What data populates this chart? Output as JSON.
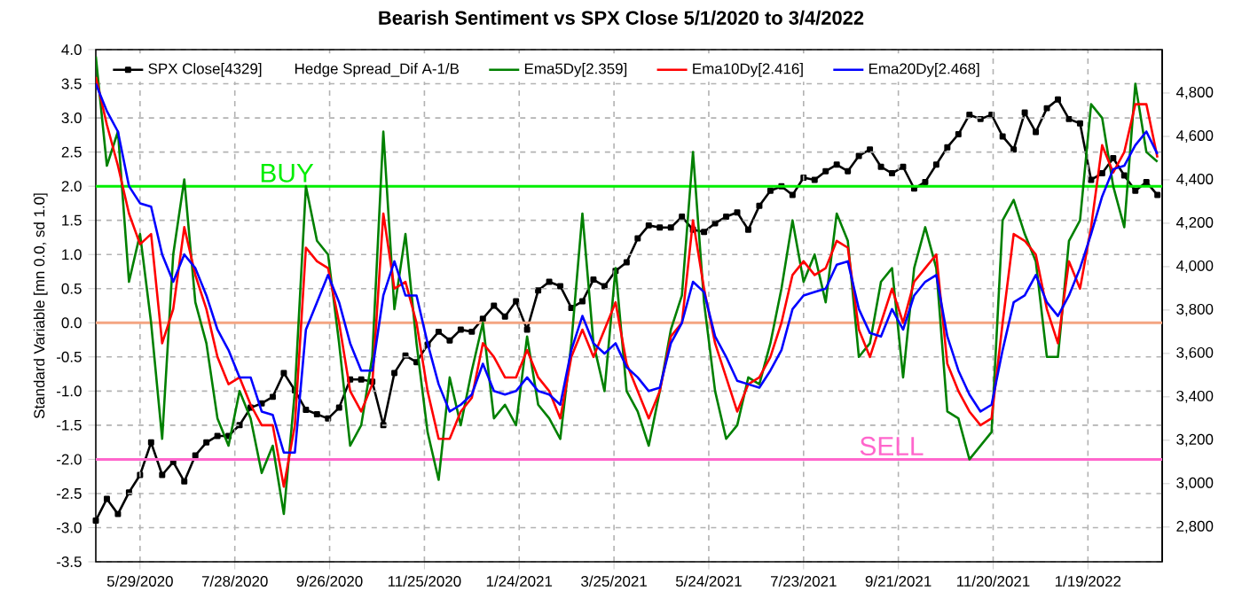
{
  "chart_data": {
    "type": "line",
    "title": "Bearish Sentiment vs SPX Close 5/1/2020 to 3/4/2022",
    "ylabel": "Standard Variable [mn 0.0, sd 1.0]",
    "x": [
      "2020-05-01",
      "2020-05-08",
      "2020-05-15",
      "2020-05-22",
      "2020-05-29",
      "2020-06-05",
      "2020-06-12",
      "2020-06-19",
      "2020-06-26",
      "2020-07-03",
      "2020-07-10",
      "2020-07-17",
      "2020-07-24",
      "2020-07-31",
      "2020-08-07",
      "2020-08-14",
      "2020-08-21",
      "2020-08-28",
      "2020-09-04",
      "2020-09-11",
      "2020-09-18",
      "2020-09-25",
      "2020-10-02",
      "2020-10-09",
      "2020-10-16",
      "2020-10-23",
      "2020-10-30",
      "2020-11-06",
      "2020-11-13",
      "2020-11-20",
      "2020-11-27",
      "2020-12-04",
      "2020-12-11",
      "2020-12-18",
      "2020-12-25",
      "2021-01-01",
      "2021-01-08",
      "2021-01-15",
      "2021-01-22",
      "2021-01-29",
      "2021-02-05",
      "2021-02-12",
      "2021-02-19",
      "2021-02-26",
      "2021-03-05",
      "2021-03-12",
      "2021-03-19",
      "2021-03-26",
      "2021-04-02",
      "2021-04-09",
      "2021-04-16",
      "2021-04-23",
      "2021-04-30",
      "2021-05-07",
      "2021-05-14",
      "2021-05-21",
      "2021-05-28",
      "2021-06-04",
      "2021-06-11",
      "2021-06-18",
      "2021-06-25",
      "2021-07-02",
      "2021-07-09",
      "2021-07-16",
      "2021-07-23",
      "2021-07-30",
      "2021-08-06",
      "2021-08-13",
      "2021-08-20",
      "2021-08-27",
      "2021-09-03",
      "2021-09-10",
      "2021-09-17",
      "2021-09-24",
      "2021-10-01",
      "2021-10-08",
      "2021-10-15",
      "2021-10-22",
      "2021-10-29",
      "2021-11-05",
      "2021-11-12",
      "2021-11-19",
      "2021-11-26",
      "2021-12-03",
      "2021-12-10",
      "2021-12-17",
      "2021-12-24",
      "2021-12-31",
      "2022-01-07",
      "2022-01-14",
      "2022-01-21",
      "2022-01-28",
      "2022-02-04",
      "2022-02-11",
      "2022-02-18",
      "2022-02-25",
      "2022-03-04"
    ],
    "series": [
      {
        "name": "SPX Close[4329]",
        "color": "#000000",
        "axis": "y2",
        "marker": "square",
        "values": [
          2830,
          2930,
          2860,
          2960,
          3040,
          3190,
          3040,
          3100,
          3010,
          3130,
          3190,
          3220,
          3220,
          3270,
          3350,
          3370,
          3400,
          3510,
          3430,
          3340,
          3320,
          3300,
          3350,
          3480,
          3480,
          3470,
          3270,
          3510,
          3590,
          3560,
          3640,
          3700,
          3660,
          3710,
          3700,
          3760,
          3820,
          3770,
          3840,
          3710,
          3890,
          3930,
          3910,
          3810,
          3840,
          3940,
          3910,
          3980,
          4020,
          4130,
          4190,
          4180,
          4180,
          4230,
          4170,
          4160,
          4200,
          4230,
          4250,
          4170,
          4280,
          4350,
          4370,
          4330,
          4410,
          4400,
          4440,
          4470,
          4440,
          4510,
          4540,
          4460,
          4430,
          4460,
          4360,
          4390,
          4470,
          4550,
          4610,
          4700,
          4680,
          4700,
          4600,
          4540,
          4710,
          4620,
          4730,
          4770,
          4680,
          4660,
          4400,
          4430,
          4500,
          4420,
          4350,
          4390,
          4330
        ]
      },
      {
        "name": "Ema5Dy[2.359]",
        "color": "#008000",
        "values": [
          3.9,
          2.3,
          2.8,
          0.6,
          1.3,
          0.0,
          -1.7,
          1.0,
          2.1,
          0.3,
          -0.3,
          -1.4,
          -1.8,
          -1.0,
          -1.4,
          -2.2,
          -1.8,
          -2.8,
          -1.0,
          2.0,
          1.2,
          1.0,
          -0.3,
          -1.8,
          -1.5,
          -0.5,
          2.8,
          0.2,
          1.3,
          -0.3,
          -1.6,
          -2.3,
          -0.8,
          -1.5,
          -0.7,
          0.0,
          -1.4,
          -1.2,
          -1.5,
          -0.2,
          -1.2,
          -1.4,
          -1.7,
          -0.3,
          1.6,
          -0.3,
          -1.0,
          0.8,
          -1.0,
          -1.3,
          -1.8,
          -1.0,
          -0.1,
          0.4,
          2.5,
          0.3,
          -1.0,
          -1.7,
          -1.5,
          -0.8,
          -0.9,
          -0.3,
          0.5,
          1.5,
          0.6,
          1.0,
          0.3,
          1.6,
          1.2,
          -0.5,
          -0.3,
          0.6,
          0.8,
          -0.8,
          0.8,
          1.4,
          0.8,
          -1.3,
          -1.4,
          -2.0,
          -1.8,
          -1.6,
          1.5,
          1.8,
          1.3,
          0.9,
          -0.5,
          -0.5,
          1.2,
          1.5,
          3.2,
          3.0,
          2.0,
          1.4,
          3.5,
          2.5,
          2.36
        ]
      },
      {
        "name": "Ema10Dy[2.416]",
        "color": "#ff0000",
        "values": [
          3.6,
          2.9,
          2.3,
          1.6,
          1.15,
          1.3,
          -0.3,
          0.2,
          1.4,
          0.7,
          0.2,
          -0.5,
          -0.9,
          -0.8,
          -1.2,
          -1.5,
          -1.5,
          -2.4,
          -1.5,
          1.1,
          0.9,
          0.8,
          0.0,
          -1.0,
          -1.3,
          -0.9,
          1.6,
          0.5,
          0.6,
          0.0,
          -1.0,
          -1.7,
          -1.7,
          -1.3,
          -1.1,
          -0.3,
          -0.5,
          -0.8,
          -0.8,
          -0.4,
          -0.8,
          -1.0,
          -1.4,
          -0.5,
          -0.1,
          -0.5,
          -0.1,
          0.3,
          -0.6,
          -1.0,
          -1.4,
          -1.0,
          -0.2,
          0.0,
          1.5,
          0.5,
          -0.3,
          -0.8,
          -1.3,
          -0.9,
          -0.8,
          -0.5,
          0.0,
          0.7,
          0.9,
          0.7,
          0.8,
          1.2,
          1.1,
          -0.1,
          -0.5,
          0.0,
          0.5,
          0.0,
          0.6,
          0.8,
          1.0,
          -0.6,
          -1.0,
          -1.3,
          -1.5,
          -1.4,
          0.0,
          1.3,
          1.2,
          1.0,
          0.2,
          -0.3,
          0.9,
          0.5,
          1.4,
          2.6,
          2.2,
          2.5,
          3.2,
          3.2,
          2.42
        ]
      },
      {
        "name": "Ema20Dy[2.468]",
        "color": "#0000ff",
        "values": [
          3.5,
          3.1,
          2.8,
          2.0,
          1.75,
          1.7,
          1.0,
          0.6,
          1.0,
          0.8,
          0.4,
          -0.1,
          -0.4,
          -0.8,
          -0.8,
          -1.3,
          -1.35,
          -1.9,
          -1.9,
          -0.1,
          0.3,
          0.7,
          0.3,
          -0.3,
          -0.7,
          -0.7,
          0.4,
          0.9,
          0.4,
          0.4,
          -0.3,
          -0.9,
          -1.3,
          -1.2,
          -1.05,
          -0.6,
          -1.0,
          -1.05,
          -1.0,
          -0.8,
          -1.0,
          -1.05,
          -1.2,
          -0.4,
          0.1,
          -0.3,
          -0.45,
          -0.3,
          -0.65,
          -0.8,
          -1.0,
          -0.95,
          -0.3,
          0.0,
          0.6,
          0.45,
          -0.2,
          -0.5,
          -0.85,
          -0.9,
          -0.95,
          -0.7,
          -0.4,
          0.2,
          0.4,
          0.45,
          0.5,
          0.85,
          0.9,
          0.2,
          -0.15,
          -0.2,
          0.2,
          -0.1,
          0.4,
          0.6,
          0.7,
          -0.2,
          -0.7,
          -1.05,
          -1.3,
          -1.2,
          -0.4,
          0.3,
          0.4,
          0.7,
          0.3,
          0.1,
          0.4,
          0.8,
          1.3,
          1.85,
          2.25,
          2.3,
          2.6,
          2.8,
          2.47
        ]
      }
    ],
    "xlim": [
      "2020-05-01",
      "2022-03-07"
    ],
    "xticks": [
      {
        "value": "2020-05-29",
        "label": "5/29/2020"
      },
      {
        "value": "2020-07-28",
        "label": "7/28/2020"
      },
      {
        "value": "2020-09-26",
        "label": "9/26/2020"
      },
      {
        "value": "2020-11-25",
        "label": "11/25/2020"
      },
      {
        "value": "2021-01-24",
        "label": "1/24/2021"
      },
      {
        "value": "2021-03-25",
        "label": "3/25/2021"
      },
      {
        "value": "2021-05-24",
        "label": "5/24/2021"
      },
      {
        "value": "2021-07-23",
        "label": "7/23/2021"
      },
      {
        "value": "2021-09-21",
        "label": "9/21/2021"
      },
      {
        "value": "2021-11-20",
        "label": "11/20/2021"
      },
      {
        "value": "2022-01-19",
        "label": "1/19/2022"
      }
    ],
    "ylim": [
      -3.5,
      4.0
    ],
    "yticks": [
      {
        "value": -3.5,
        "label": "-3.5"
      },
      {
        "value": -3.0,
        "label": "-3.0"
      },
      {
        "value": -2.5,
        "label": "-2.5"
      },
      {
        "value": -2.0,
        "label": "-2.0"
      },
      {
        "value": -1.5,
        "label": "-1.5"
      },
      {
        "value": -1.0,
        "label": "-1.0"
      },
      {
        "value": -0.5,
        "label": "-0.5"
      },
      {
        "value": 0.0,
        "label": "0.0"
      },
      {
        "value": 0.5,
        "label": "0.5"
      },
      {
        "value": 1.0,
        "label": "1.0"
      },
      {
        "value": 1.5,
        "label": "1.5"
      },
      {
        "value": 2.0,
        "label": "2.0"
      },
      {
        "value": 2.5,
        "label": "2.5"
      },
      {
        "value": 3.0,
        "label": "3.0"
      },
      {
        "value": 3.5,
        "label": "3.5"
      },
      {
        "value": 4.0,
        "label": "4.0"
      }
    ],
    "y2lim": [
      2640,
      5000
    ],
    "y2ticks": [
      {
        "value": 2800,
        "label": "2,800"
      },
      {
        "value": 3000,
        "label": "3,000"
      },
      {
        "value": 3200,
        "label": "3,200"
      },
      {
        "value": 3400,
        "label": "3,400"
      },
      {
        "value": 3600,
        "label": "3,600"
      },
      {
        "value": 3800,
        "label": "3,800"
      },
      {
        "value": 4000,
        "label": "4,000"
      },
      {
        "value": 4200,
        "label": "4,200"
      },
      {
        "value": 4400,
        "label": "4,400"
      },
      {
        "value": 4600,
        "label": "4,600"
      },
      {
        "value": 4800,
        "label": "4,800"
      }
    ],
    "ref_lines": [
      {
        "axis": "y",
        "value": 2.0,
        "label": "BUY",
        "color": "#00ee00"
      },
      {
        "axis": "y",
        "value": 0.0,
        "color": "#f4a582"
      },
      {
        "axis": "y",
        "value": -2.0,
        "label": "SELL",
        "color": "#ff66cc"
      }
    ],
    "annotations": [
      "Hedge Spread_Dif A-1/B"
    ],
    "grid": true,
    "legend": "top left"
  }
}
